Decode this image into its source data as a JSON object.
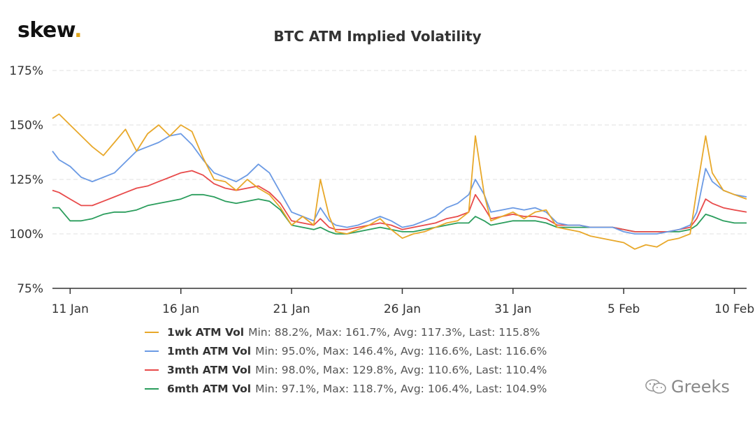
{
  "brand": {
    "name": "skew",
    "dot": "."
  },
  "watermark": {
    "text": "Greeks",
    "icon": "wechat-icon"
  },
  "chart_data": {
    "type": "line",
    "title": "BTC ATM Implied Volatility",
    "xlabel": "",
    "ylabel": "",
    "ylim": [
      75,
      175
    ],
    "y_ticks": [
      "75%",
      "100%",
      "125%",
      "150%",
      "175%"
    ],
    "x_ticks": [
      "11 Jan",
      "16 Jan",
      "21 Jan",
      "26 Jan",
      "31 Jan",
      "5 Feb",
      "10 Feb"
    ],
    "x_range_days": [
      10.2,
      10.55
    ],
    "grid": "horizontal dashed",
    "legend_position": "bottom",
    "x": [
      10.2,
      10.5,
      11,
      11.5,
      12,
      12.5,
      13,
      13.5,
      14,
      14.5,
      15,
      15.5,
      16,
      16.5,
      17,
      17.5,
      18,
      18.5,
      19,
      19.5,
      20,
      20.5,
      21,
      21.5,
      22,
      22.3,
      22.7,
      23,
      23.5,
      24,
      24.5,
      25,
      25.5,
      26,
      26.5,
      27,
      27.5,
      28,
      28.5,
      29,
      29.3,
      29.7,
      30,
      30.5,
      31,
      31.5,
      32,
      32.5,
      33,
      33.5,
      34,
      34.5,
      35,
      35.5,
      36,
      36.5,
      37,
      37.5,
      38,
      38.5,
      39,
      39.3,
      39.7,
      40,
      40.5,
      41,
      41.55
    ],
    "series": [
      {
        "name": "1wk ATM Vol",
        "summary": "Min: 88.2%, Max: 161.7%, Avg: 117.3%, Last: 115.8%",
        "color": "#e8a82a",
        "values": [
          153,
          155,
          150,
          145,
          140,
          136,
          142,
          148,
          138,
          146,
          150,
          145,
          150,
          147,
          135,
          125,
          124,
          120,
          125,
          121,
          118,
          112,
          104,
          108,
          104,
          125,
          108,
          101,
          100,
          102,
          104,
          107,
          102,
          98,
          100,
          101,
          103,
          105,
          106,
          110,
          145,
          118,
          106,
          108,
          110,
          107,
          110,
          111,
          103,
          102,
          101,
          99,
          98,
          97,
          96,
          93,
          95,
          94,
          97,
          98,
          100,
          120,
          145,
          128,
          120,
          118,
          116
        ]
      },
      {
        "name": "1mth ATM Vol",
        "summary": "Min: 95.0%, Max: 146.4%, Avg: 116.6%, Last: 116.6%",
        "color": "#6b9ae4",
        "values": [
          138,
          134,
          131,
          126,
          124,
          126,
          128,
          133,
          138,
          140,
          142,
          145,
          146,
          141,
          134,
          128,
          126,
          124,
          127,
          132,
          128,
          119,
          110,
          108,
          106,
          112,
          106,
          104,
          103,
          104,
          106,
          108,
          106,
          103,
          104,
          106,
          108,
          112,
          114,
          118,
          125,
          118,
          110,
          111,
          112,
          111,
          112,
          110,
          105,
          104,
          104,
          103,
          103,
          103,
          101,
          100,
          100,
          100,
          101,
          102,
          104,
          110,
          130,
          124,
          120,
          118,
          117
        ]
      },
      {
        "name": "3mth ATM Vol",
        "summary": "Min: 98.0%, Max: 129.8%, Avg: 110.6%, Last: 110.4%",
        "color": "#e84a4a",
        "values": [
          120,
          119,
          116,
          113,
          113,
          115,
          117,
          119,
          121,
          122,
          124,
          126,
          128,
          129,
          127,
          123,
          121,
          120,
          121,
          122,
          119,
          114,
          106,
          105,
          104,
          107,
          103,
          102,
          102,
          103,
          104,
          105,
          104,
          102,
          103,
          104,
          105,
          107,
          108,
          110,
          118,
          112,
          107,
          108,
          109,
          108,
          108,
          107,
          104,
          104,
          104,
          103,
          103,
          103,
          102,
          101,
          101,
          101,
          101,
          102,
          103,
          107,
          116,
          114,
          112,
          111,
          110
        ]
      },
      {
        "name": "6mth ATM Vol",
        "summary": "Min: 97.1%, Max: 118.7%, Avg: 106.4%, Last: 104.9%",
        "color": "#2a9d5c",
        "values": [
          112,
          112,
          106,
          106,
          107,
          109,
          110,
          110,
          111,
          113,
          114,
          115,
          116,
          118,
          118,
          117,
          115,
          114,
          115,
          116,
          115,
          111,
          104,
          103,
          102,
          103,
          101,
          100,
          100,
          101,
          102,
          103,
          102,
          101,
          101,
          102,
          103,
          104,
          105,
          105,
          108,
          106,
          104,
          105,
          106,
          106,
          106,
          105,
          103,
          103,
          103,
          103,
          103,
          103,
          102,
          101,
          101,
          101,
          101,
          101,
          102,
          104,
          109,
          108,
          106,
          105,
          105
        ]
      }
    ]
  }
}
